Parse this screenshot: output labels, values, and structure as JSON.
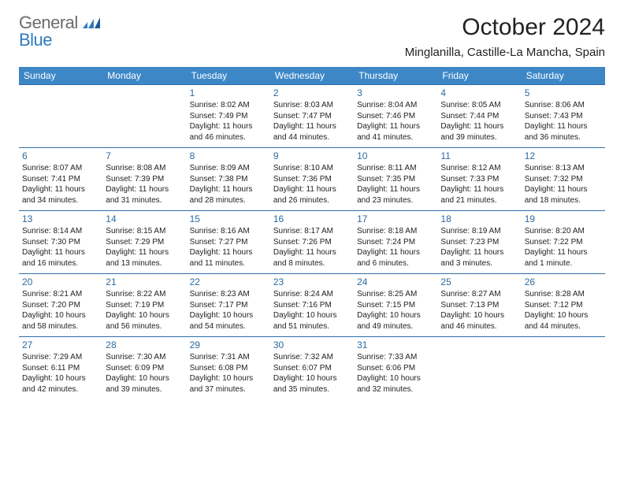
{
  "brand": {
    "part1": "General",
    "part2": "Blue"
  },
  "title": "October 2024",
  "location": "Minglanilla, Castille-La Mancha, Spain",
  "colors": {
    "header_bg": "#3d87c7",
    "header_fg": "#ffffff",
    "rule": "#2f6fa8",
    "daynum": "#2d6aa0",
    "brand_gray": "#6b6b6b",
    "brand_blue": "#2f7bbf"
  },
  "days_of_week": [
    "Sunday",
    "Monday",
    "Tuesday",
    "Wednesday",
    "Thursday",
    "Friday",
    "Saturday"
  ],
  "weeks": [
    [
      {
        "n": "",
        "sr": "",
        "ss": "",
        "dl": ""
      },
      {
        "n": "",
        "sr": "",
        "ss": "",
        "dl": ""
      },
      {
        "n": "1",
        "sr": "Sunrise: 8:02 AM",
        "ss": "Sunset: 7:49 PM",
        "dl": "Daylight: 11 hours and 46 minutes."
      },
      {
        "n": "2",
        "sr": "Sunrise: 8:03 AM",
        "ss": "Sunset: 7:47 PM",
        "dl": "Daylight: 11 hours and 44 minutes."
      },
      {
        "n": "3",
        "sr": "Sunrise: 8:04 AM",
        "ss": "Sunset: 7:46 PM",
        "dl": "Daylight: 11 hours and 41 minutes."
      },
      {
        "n": "4",
        "sr": "Sunrise: 8:05 AM",
        "ss": "Sunset: 7:44 PM",
        "dl": "Daylight: 11 hours and 39 minutes."
      },
      {
        "n": "5",
        "sr": "Sunrise: 8:06 AM",
        "ss": "Sunset: 7:43 PM",
        "dl": "Daylight: 11 hours and 36 minutes."
      }
    ],
    [
      {
        "n": "6",
        "sr": "Sunrise: 8:07 AM",
        "ss": "Sunset: 7:41 PM",
        "dl": "Daylight: 11 hours and 34 minutes."
      },
      {
        "n": "7",
        "sr": "Sunrise: 8:08 AM",
        "ss": "Sunset: 7:39 PM",
        "dl": "Daylight: 11 hours and 31 minutes."
      },
      {
        "n": "8",
        "sr": "Sunrise: 8:09 AM",
        "ss": "Sunset: 7:38 PM",
        "dl": "Daylight: 11 hours and 28 minutes."
      },
      {
        "n": "9",
        "sr": "Sunrise: 8:10 AM",
        "ss": "Sunset: 7:36 PM",
        "dl": "Daylight: 11 hours and 26 minutes."
      },
      {
        "n": "10",
        "sr": "Sunrise: 8:11 AM",
        "ss": "Sunset: 7:35 PM",
        "dl": "Daylight: 11 hours and 23 minutes."
      },
      {
        "n": "11",
        "sr": "Sunrise: 8:12 AM",
        "ss": "Sunset: 7:33 PM",
        "dl": "Daylight: 11 hours and 21 minutes."
      },
      {
        "n": "12",
        "sr": "Sunrise: 8:13 AM",
        "ss": "Sunset: 7:32 PM",
        "dl": "Daylight: 11 hours and 18 minutes."
      }
    ],
    [
      {
        "n": "13",
        "sr": "Sunrise: 8:14 AM",
        "ss": "Sunset: 7:30 PM",
        "dl": "Daylight: 11 hours and 16 minutes."
      },
      {
        "n": "14",
        "sr": "Sunrise: 8:15 AM",
        "ss": "Sunset: 7:29 PM",
        "dl": "Daylight: 11 hours and 13 minutes."
      },
      {
        "n": "15",
        "sr": "Sunrise: 8:16 AM",
        "ss": "Sunset: 7:27 PM",
        "dl": "Daylight: 11 hours and 11 minutes."
      },
      {
        "n": "16",
        "sr": "Sunrise: 8:17 AM",
        "ss": "Sunset: 7:26 PM",
        "dl": "Daylight: 11 hours and 8 minutes."
      },
      {
        "n": "17",
        "sr": "Sunrise: 8:18 AM",
        "ss": "Sunset: 7:24 PM",
        "dl": "Daylight: 11 hours and 6 minutes."
      },
      {
        "n": "18",
        "sr": "Sunrise: 8:19 AM",
        "ss": "Sunset: 7:23 PM",
        "dl": "Daylight: 11 hours and 3 minutes."
      },
      {
        "n": "19",
        "sr": "Sunrise: 8:20 AM",
        "ss": "Sunset: 7:22 PM",
        "dl": "Daylight: 11 hours and 1 minute."
      }
    ],
    [
      {
        "n": "20",
        "sr": "Sunrise: 8:21 AM",
        "ss": "Sunset: 7:20 PM",
        "dl": "Daylight: 10 hours and 58 minutes."
      },
      {
        "n": "21",
        "sr": "Sunrise: 8:22 AM",
        "ss": "Sunset: 7:19 PM",
        "dl": "Daylight: 10 hours and 56 minutes."
      },
      {
        "n": "22",
        "sr": "Sunrise: 8:23 AM",
        "ss": "Sunset: 7:17 PM",
        "dl": "Daylight: 10 hours and 54 minutes."
      },
      {
        "n": "23",
        "sr": "Sunrise: 8:24 AM",
        "ss": "Sunset: 7:16 PM",
        "dl": "Daylight: 10 hours and 51 minutes."
      },
      {
        "n": "24",
        "sr": "Sunrise: 8:25 AM",
        "ss": "Sunset: 7:15 PM",
        "dl": "Daylight: 10 hours and 49 minutes."
      },
      {
        "n": "25",
        "sr": "Sunrise: 8:27 AM",
        "ss": "Sunset: 7:13 PM",
        "dl": "Daylight: 10 hours and 46 minutes."
      },
      {
        "n": "26",
        "sr": "Sunrise: 8:28 AM",
        "ss": "Sunset: 7:12 PM",
        "dl": "Daylight: 10 hours and 44 minutes."
      }
    ],
    [
      {
        "n": "27",
        "sr": "Sunrise: 7:29 AM",
        "ss": "Sunset: 6:11 PM",
        "dl": "Daylight: 10 hours and 42 minutes."
      },
      {
        "n": "28",
        "sr": "Sunrise: 7:30 AM",
        "ss": "Sunset: 6:09 PM",
        "dl": "Daylight: 10 hours and 39 minutes."
      },
      {
        "n": "29",
        "sr": "Sunrise: 7:31 AM",
        "ss": "Sunset: 6:08 PM",
        "dl": "Daylight: 10 hours and 37 minutes."
      },
      {
        "n": "30",
        "sr": "Sunrise: 7:32 AM",
        "ss": "Sunset: 6:07 PM",
        "dl": "Daylight: 10 hours and 35 minutes."
      },
      {
        "n": "31",
        "sr": "Sunrise: 7:33 AM",
        "ss": "Sunset: 6:06 PM",
        "dl": "Daylight: 10 hours and 32 minutes."
      },
      {
        "n": "",
        "sr": "",
        "ss": "",
        "dl": ""
      },
      {
        "n": "",
        "sr": "",
        "ss": "",
        "dl": ""
      }
    ]
  ]
}
